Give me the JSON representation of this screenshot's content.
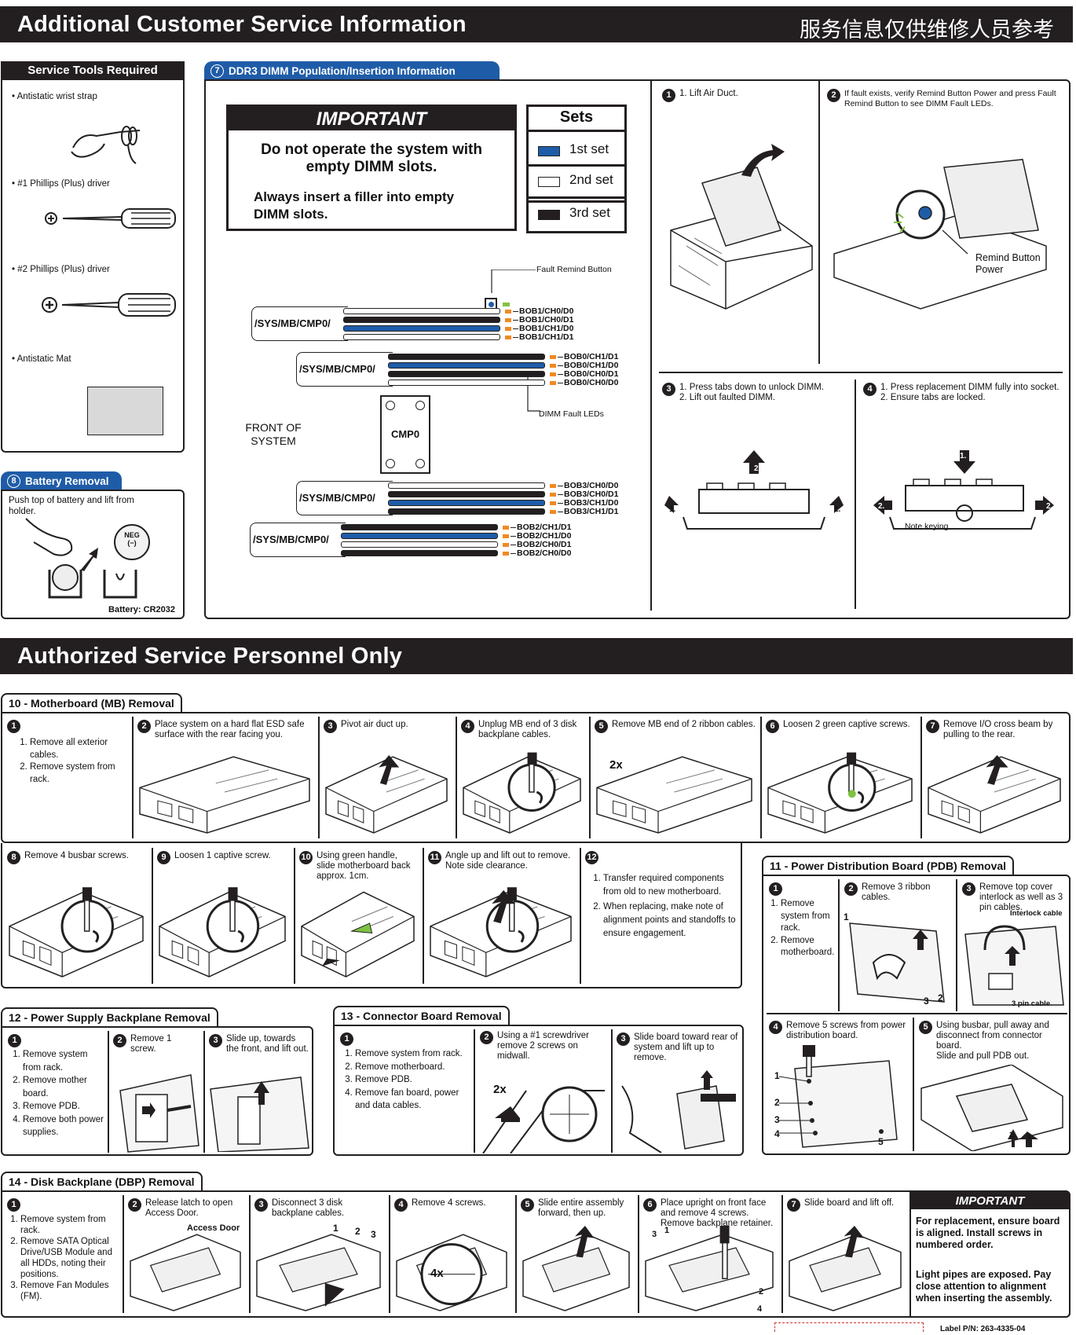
{
  "header": {
    "title": "Additional Customer Service Information",
    "chinese": "服务信息仅供维修人员参考"
  },
  "tools": {
    "title": "Service Tools Required",
    "items": [
      "Antistatic wrist strap",
      "#1 Phillips (Plus) driver",
      "#2 Phillips (Plus) driver",
      "Antistatic Mat"
    ]
  },
  "battery": {
    "num": "8",
    "title": "Battery Removal",
    "text": "Push top of battery and lift from holder.",
    "neg": "NEG",
    "neg_sign": "(−)",
    "caption": "Battery: CR2032"
  },
  "ddr3": {
    "num": "7",
    "title": "DDR3 DIMM Population/Insertion Information",
    "important_title": "IMPORTANT",
    "important_line1": "Do not operate the system with empty DIMM slots.",
    "important_line2": "Always insert a filler into empty DIMM slots.",
    "sets_title": "Sets",
    "sets": [
      "1st set",
      "2nd set",
      "3rd set"
    ],
    "set_colors": [
      "#1f5ca8",
      "#ffffff",
      "#231f20"
    ],
    "fault_remind": "Fault Remind Button",
    "fault_leds": "DIMM Fault LEDs",
    "front": "FRONT OF SYSTEM",
    "cmp": "CMP0",
    "path": "/SYS/MB/CMP0/",
    "groups": [
      [
        "BOB1/CH0/D0",
        "BOB1/CH0/D1",
        "BOB1/CH1/D0",
        "BOB1/CH1/D1"
      ],
      [
        "BOB0/CH1/D1",
        "BOB0/CH1/D0",
        "BOB0/CH0/D1",
        "BOB0/CH0/D0"
      ],
      [
        "BOB3/CH0/D0",
        "BOB3/CH0/D1",
        "BOB3/CH1/D0",
        "BOB3/CH1/D1"
      ],
      [
        "BOB2/CH1/D1",
        "BOB2/CH1/D0",
        "BOB2/CH0/D1",
        "BOB2/CH0/D0"
      ]
    ],
    "steps": [
      {
        "n": "1",
        "text": "1. Lift Air Duct."
      },
      {
        "n": "2",
        "text": "If fault exists, verify Remind Button Power and press Fault Remind Button to see DIMM Fault LEDs.",
        "callout": "Remind Button Power"
      },
      {
        "n": "3",
        "lines": [
          "1. Press tabs down to unlock DIMM.",
          "2. Lift out faulted DIMM."
        ]
      },
      {
        "n": "4",
        "lines": [
          "1. Press replacement DIMM fully into socket.",
          "2. Ensure tabs are locked."
        ],
        "note": "Note keying"
      }
    ],
    "arrow_labels": [
      "1.",
      "2.",
      "1.",
      "1.",
      "2.",
      "2.",
      "2."
    ]
  },
  "auth": {
    "title": "Authorized Service Personnel Only"
  },
  "mb": {
    "title": "10 - Motherboard (MB) Removal",
    "step1": [
      "Remove all exterior cables.",
      "Remove system from rack."
    ],
    "steps": [
      {
        "n": "2",
        "text": "Place system on a hard flat ESD safe surface with the rear facing you."
      },
      {
        "n": "3",
        "text": "Pivot air duct up."
      },
      {
        "n": "4",
        "text": "Unplug MB end of 3 disk backplane cables."
      },
      {
        "n": "5",
        "text": "Remove MB end of 2 ribbon cables.",
        "badge": "2x"
      },
      {
        "n": "6",
        "text": "Loosen 2 green captive screws."
      },
      {
        "n": "7",
        "text": "Remove I/O cross beam by pulling to the rear."
      },
      {
        "n": "8",
        "text": "Remove 4 busbar screws."
      },
      {
        "n": "9",
        "text": "Loosen 1 captive screw."
      },
      {
        "n": "10",
        "text": "Using green handle, slide motherboard back approx. 1cm."
      },
      {
        "n": "11",
        "text": "Angle up and lift out to remove. Note side clearance."
      }
    ],
    "step12": [
      "Transfer required components from old to new motherboard.",
      "When replacing, make note of alignment points and standoffs to ensure engagement."
    ]
  },
  "pdb": {
    "title": "11 - Power Distribution Board (PDB) Removal",
    "step1": [
      "Remove system from rack.",
      "Remove motherboard."
    ],
    "step2": "Remove 3 ribbon cables.",
    "step3": "Remove top cover interlock as well as 3 pin cables.",
    "interlock": "Interlock cable",
    "pin": "3 pin cable",
    "step4": "Remove 5 screws from power distribution board.",
    "step5": [
      "Using busbar, pull away and disconnect from connector board.",
      "Slide and pull PDB out."
    ],
    "nums": [
      "1",
      "2",
      "3",
      "1",
      "2",
      "3",
      "4",
      "5",
      "2.",
      "1."
    ]
  },
  "psb": {
    "title": "12 - Power Supply Backplane Removal",
    "step1": [
      "Remove system from rack.",
      "Remove mother board.",
      "Remove PDB.",
      "Remove both power supplies."
    ],
    "step2": "Remove 1 screw.",
    "step3": "Slide up, towards the front, and lift out."
  },
  "cb": {
    "title": "13 - Connector Board Removal",
    "step1": [
      "Remove system from rack.",
      "Remove motherboard.",
      "Remove PDB.",
      "Remove fan board, power and data cables."
    ],
    "step2": "Using a #1 screwdriver remove 2 screws on midwall.",
    "badge": "2x",
    "step3": "Slide board toward rear of system and lift up to remove."
  },
  "dbp": {
    "title": "14 - Disk Backplane (DBP) Removal",
    "step1": [
      "Remove system from rack.",
      "Remove SATA Optical Drive/USB Module and all HDDs, noting their positions.",
      "Remove Fan Modules (FM)."
    ],
    "steps": [
      {
        "n": "2",
        "text": "Release latch to open Access Door.",
        "callout": "Access Door"
      },
      {
        "n": "3",
        "text": "Disconnect 3 disk backplane cables."
      },
      {
        "n": "4",
        "text": "Remove 4 screws.",
        "badge": "4x"
      },
      {
        "n": "5",
        "text": "Slide entire assembly forward, then up."
      },
      {
        "n": "6",
        "text": "Place upright on front face and remove 4 screws. Remove backplane retainer."
      },
      {
        "n": "7",
        "text": "Slide board and lift off."
      }
    ],
    "cable_nums": [
      "1",
      "2",
      "3"
    ],
    "screw_nums": [
      "1",
      "3",
      "2",
      "4"
    ],
    "important_title": "IMPORTANT",
    "important1": "For replacement, ensure board is aligned. Install screws in numbered order.",
    "important2": "Light pipes are exposed. Pay close attention to alignment when inserting the assembly."
  },
  "footer": {
    "label": "Label P/N: 263-4335-04"
  }
}
